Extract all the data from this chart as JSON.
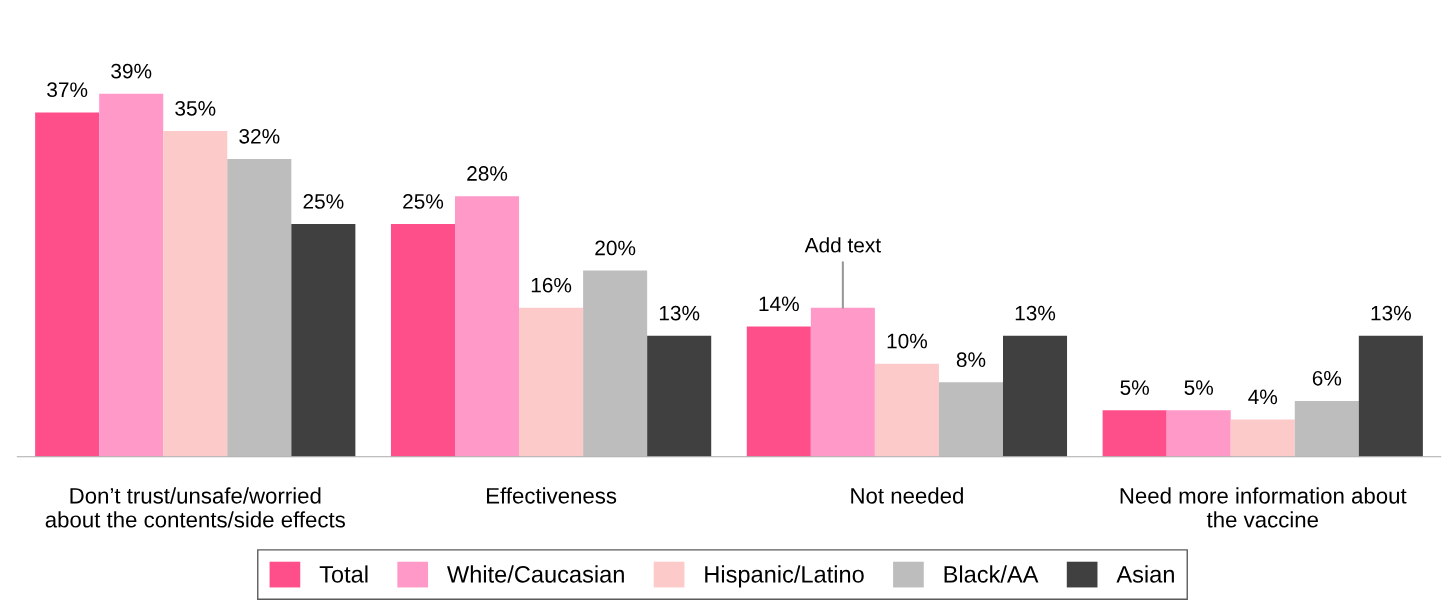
{
  "chart_data": {
    "type": "bar",
    "categories": [
      "Don’t trust/unsafe/worried\nabout the contents/side effects",
      "Effectiveness",
      "Not needed",
      "Need more information about\nthe vaccine"
    ],
    "series": [
      {
        "name": "Total",
        "color": "#ff4f8b",
        "values": [
          37,
          25,
          14,
          5
        ],
        "value_labels": [
          "37%",
          "25%",
          "14%",
          "5%"
        ]
      },
      {
        "name": "White/Caucasian",
        "color": "#ff99c8",
        "values": [
          39,
          28,
          16,
          5
        ],
        "value_labels": [
          "39%",
          "28%",
          null,
          "5%"
        ]
      },
      {
        "name": "Hispanic/Latino",
        "color": "#fdcaca",
        "values": [
          35,
          16,
          10,
          4
        ],
        "value_labels": [
          "35%",
          "16%",
          "10%",
          "4%"
        ]
      },
      {
        "name": "Black/AA",
        "color": "#bdbdbd",
        "values": [
          32,
          20,
          8,
          6
        ],
        "value_labels": [
          "32%",
          "20%",
          "8%",
          "6%"
        ]
      },
      {
        "name": "Asian",
        "color": "#404040",
        "values": [
          25,
          13,
          13,
          13
        ],
        "value_labels": [
          "25%",
          "13%",
          "13%",
          "13%"
        ]
      }
    ],
    "annotations": [
      "Add text"
    ],
    "legend": "bottom",
    "grid": false
  }
}
